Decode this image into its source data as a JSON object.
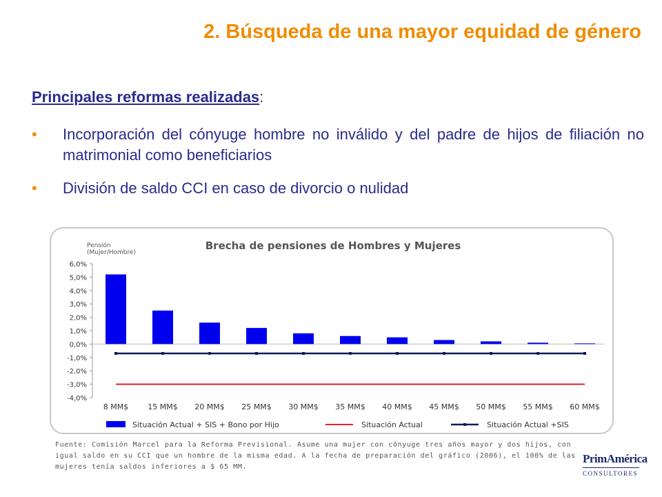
{
  "header": {
    "title": "2. Búsqueda de una mayor equidad de género"
  },
  "section": {
    "heading": "Principales reformas realizadas",
    "colon": ":",
    "bullets": [
      {
        "symbol": "•",
        "text": "Incorporación del cónyuge hombre no inválido y del padre de hijos de filiación no matrimonial como beneficiarios"
      },
      {
        "symbol": "•",
        "text": "División de saldo CCI en caso de divorcio o nulidad"
      }
    ]
  },
  "chart_data": {
    "type": "bar",
    "title": "Brecha de pensiones de Hombres y Mujeres",
    "ylabel": [
      "Pensión",
      "(Mujer/Hombre)"
    ],
    "categories": [
      "8 MM$",
      "15 MM$",
      "20 MM$",
      "25 MM$",
      "30 MM$",
      "35 MM$",
      "40 MM$",
      "45 MM$",
      "50 MM$",
      "55 MM$",
      "60 MM$"
    ],
    "ylim": [
      -4.0,
      6.0
    ],
    "yticks": [
      6.0,
      5.0,
      4.0,
      3.0,
      2.0,
      1.0,
      0.0,
      -1.0,
      -2.0,
      -3.0,
      -4.0
    ],
    "ytick_labels": [
      "6,0%",
      "5,0%",
      "4,0%",
      "3,0%",
      "2,0%",
      "1,0%",
      "0,0%",
      "-1,0%",
      "-2,0%",
      "-3,0%",
      "-4,0%"
    ],
    "grid": false,
    "legend_position": "bottom",
    "series": [
      {
        "name": "Situación Actual + SIS + Bono por Hijo",
        "kind": "bar",
        "color": "#0000ee",
        "values": [
          5.2,
          2.5,
          1.6,
          1.2,
          0.8,
          0.6,
          0.5,
          0.3,
          0.2,
          0.1,
          0.05
        ]
      },
      {
        "name": "Situación Actual",
        "kind": "line",
        "color": "#e8202a",
        "values": [
          -3.0,
          -3.0,
          -3.0,
          -3.0,
          -3.0,
          -3.0,
          -3.0,
          -3.0,
          -3.0,
          -3.0,
          -3.0
        ]
      },
      {
        "name": "Situación Actual +SIS",
        "kind": "line-marker",
        "color": "#0a1a5a",
        "values": [
          -0.7,
          -0.7,
          -0.7,
          -0.7,
          -0.7,
          -0.7,
          -0.7,
          -0.7,
          -0.7,
          -0.7,
          -0.7
        ]
      }
    ]
  },
  "footnote": "Fuente: Comisión Marcel para la Reforma Previsional. Asume una mujer con cónyuge tres años mayor y dos hijos, con igual saldo en su CCI que un hombre de la misma edad. A la fecha de preparación del gráfico (2006), el 100% de las mujeres tenía saldos inferiores  a $ 65 MM.",
  "logo": {
    "brand": "PrimAmérica",
    "sub": "CONSULTORES"
  }
}
